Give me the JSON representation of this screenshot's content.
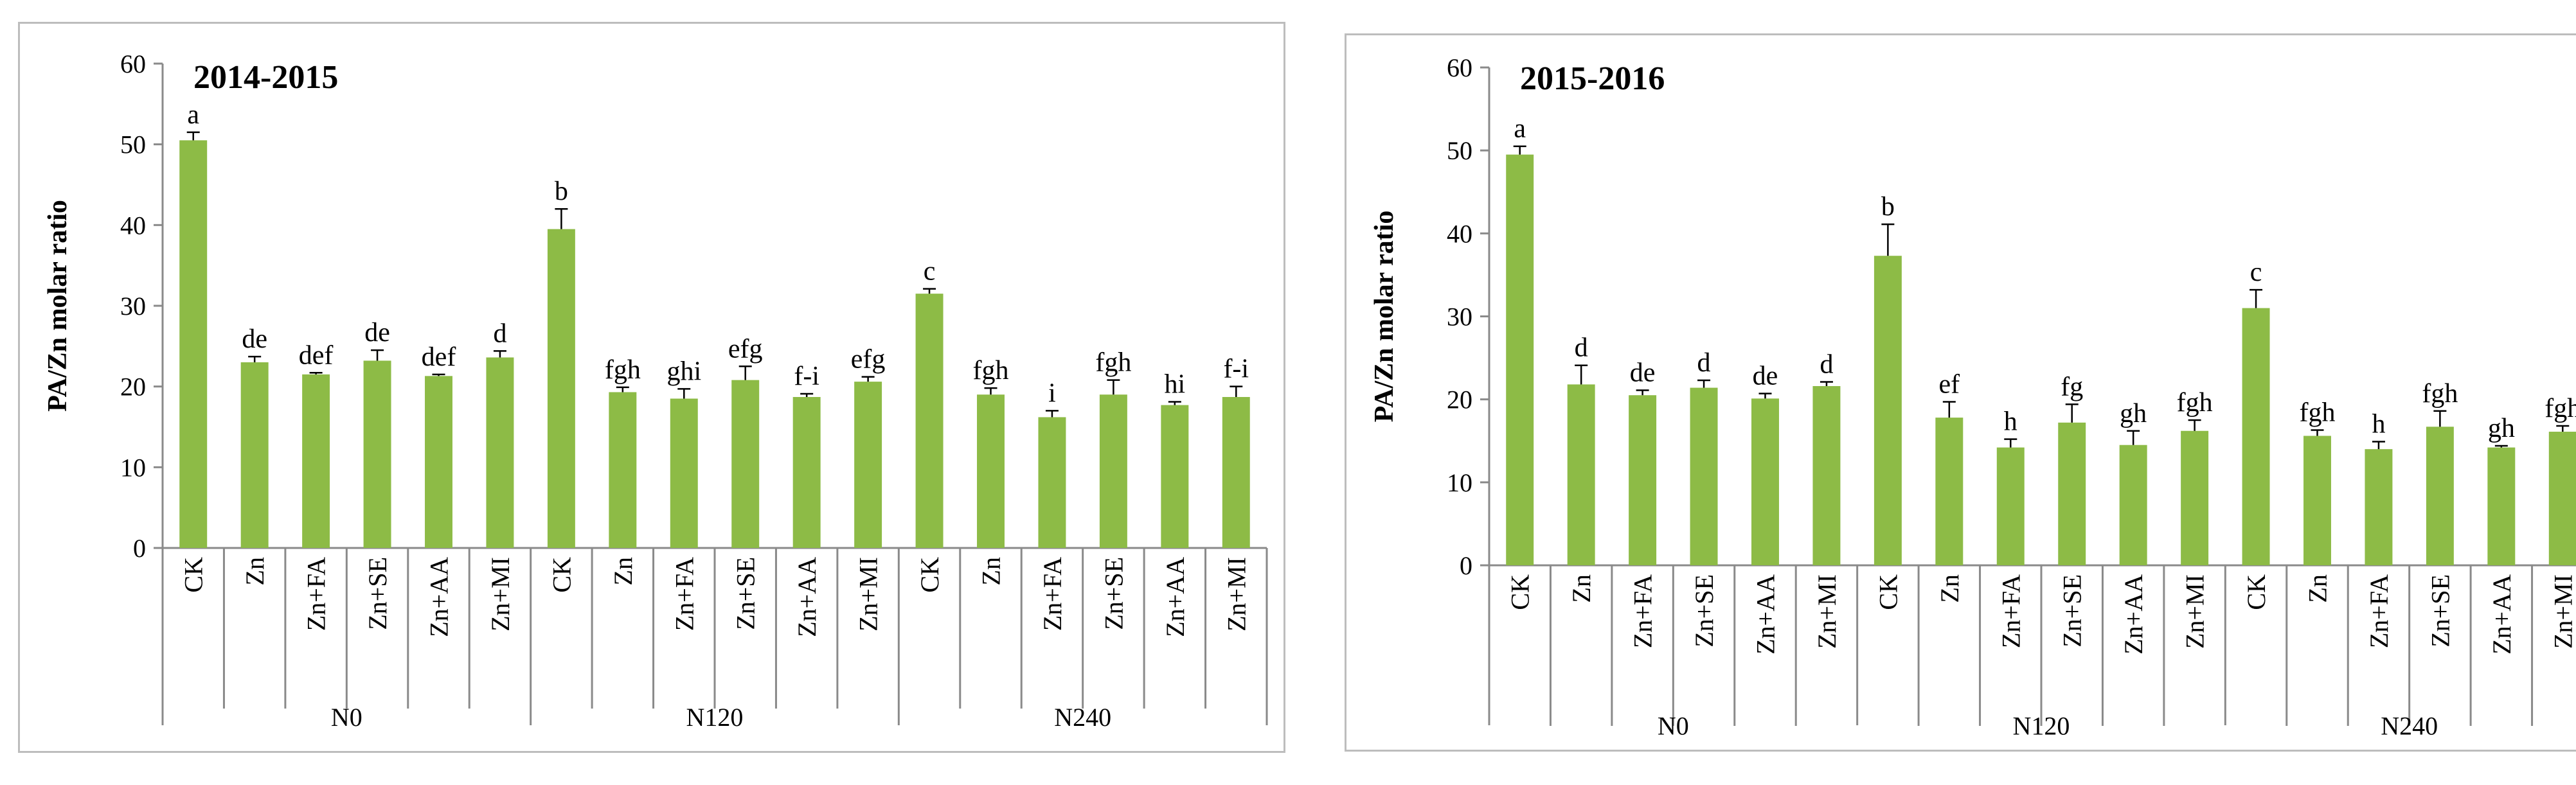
{
  "chart_data": [
    {
      "type": "bar",
      "title": "2014-2015",
      "ylabel": "PA/Zn molar ratio",
      "xlabel": "",
      "ylim": [
        0,
        60
      ],
      "yticks": [
        0,
        10,
        20,
        30,
        40,
        50,
        60
      ],
      "bar_color": "#8dbb46",
      "groups": [
        {
          "name": "N0",
          "categories": [
            "CK",
            "Zn",
            "Zn+FA",
            "Zn+SE",
            "Zn+AA",
            "Zn+MI"
          ]
        },
        {
          "name": "N120",
          "categories": [
            "CK",
            "Zn",
            "Zn+FA",
            "Zn+SE",
            "Zn+AA",
            "Zn+MI"
          ]
        },
        {
          "name": "N240",
          "categories": [
            "CK",
            "Zn",
            "Zn+FA",
            "Zn+SE",
            "Zn+AA",
            "Zn+MI"
          ]
        }
      ],
      "values": [
        50.5,
        23.0,
        21.5,
        23.2,
        21.3,
        23.6,
        39.5,
        19.3,
        18.5,
        20.8,
        18.7,
        20.6,
        31.5,
        19.0,
        16.2,
        19.0,
        17.7,
        18.7
      ],
      "errors": [
        1.0,
        0.7,
        0.2,
        1.3,
        0.2,
        0.8,
        2.5,
        0.6,
        1.2,
        1.7,
        0.4,
        0.6,
        0.6,
        0.8,
        0.8,
        1.8,
        0.4,
        1.3
      ],
      "labels": [
        "a",
        "de",
        "def",
        "de",
        "def",
        "d",
        "b",
        "fgh",
        "ghi",
        "efg",
        "f-i",
        "efg",
        "c",
        "fgh",
        "i",
        "fgh",
        "hi",
        "f-i"
      ]
    },
    {
      "type": "bar",
      "title": "2015-2016",
      "ylabel": "PA/Zn molar ratio",
      "xlabel": "",
      "ylim": [
        0,
        60
      ],
      "yticks": [
        0,
        10,
        20,
        30,
        40,
        50,
        60
      ],
      "bar_color": "#8dbb46",
      "groups": [
        {
          "name": "N0",
          "categories": [
            "CK",
            "Zn",
            "Zn+FA",
            "Zn+SE",
            "Zn+AA",
            "Zn+MI"
          ]
        },
        {
          "name": "N120",
          "categories": [
            "CK",
            "Zn",
            "Zn+FA",
            "Zn+SE",
            "Zn+AA",
            "Zn+MI"
          ]
        },
        {
          "name": "N240",
          "categories": [
            "CK",
            "Zn",
            "Zn+FA",
            "Zn+SE",
            "Zn+AA",
            "Zn+MI"
          ]
        }
      ],
      "values": [
        49.5,
        21.8,
        20.5,
        21.4,
        20.1,
        21.6,
        37.3,
        17.8,
        14.2,
        17.2,
        14.5,
        16.2,
        31.0,
        15.6,
        14.0,
        16.7,
        14.2,
        16.1
      ],
      "errors": [
        1.0,
        2.3,
        0.6,
        0.9,
        0.6,
        0.5,
        3.8,
        1.9,
        1.0,
        2.2,
        1.7,
        1.3,
        2.2,
        0.7,
        0.9,
        1.9,
        0.2,
        0.7
      ],
      "labels": [
        "a",
        "d",
        "de",
        "d",
        "de",
        "d",
        "b",
        "ef",
        "h",
        "fg",
        "gh",
        "fgh",
        "c",
        "fgh",
        "h",
        "fgh",
        "gh",
        "fgh"
      ]
    }
  ]
}
